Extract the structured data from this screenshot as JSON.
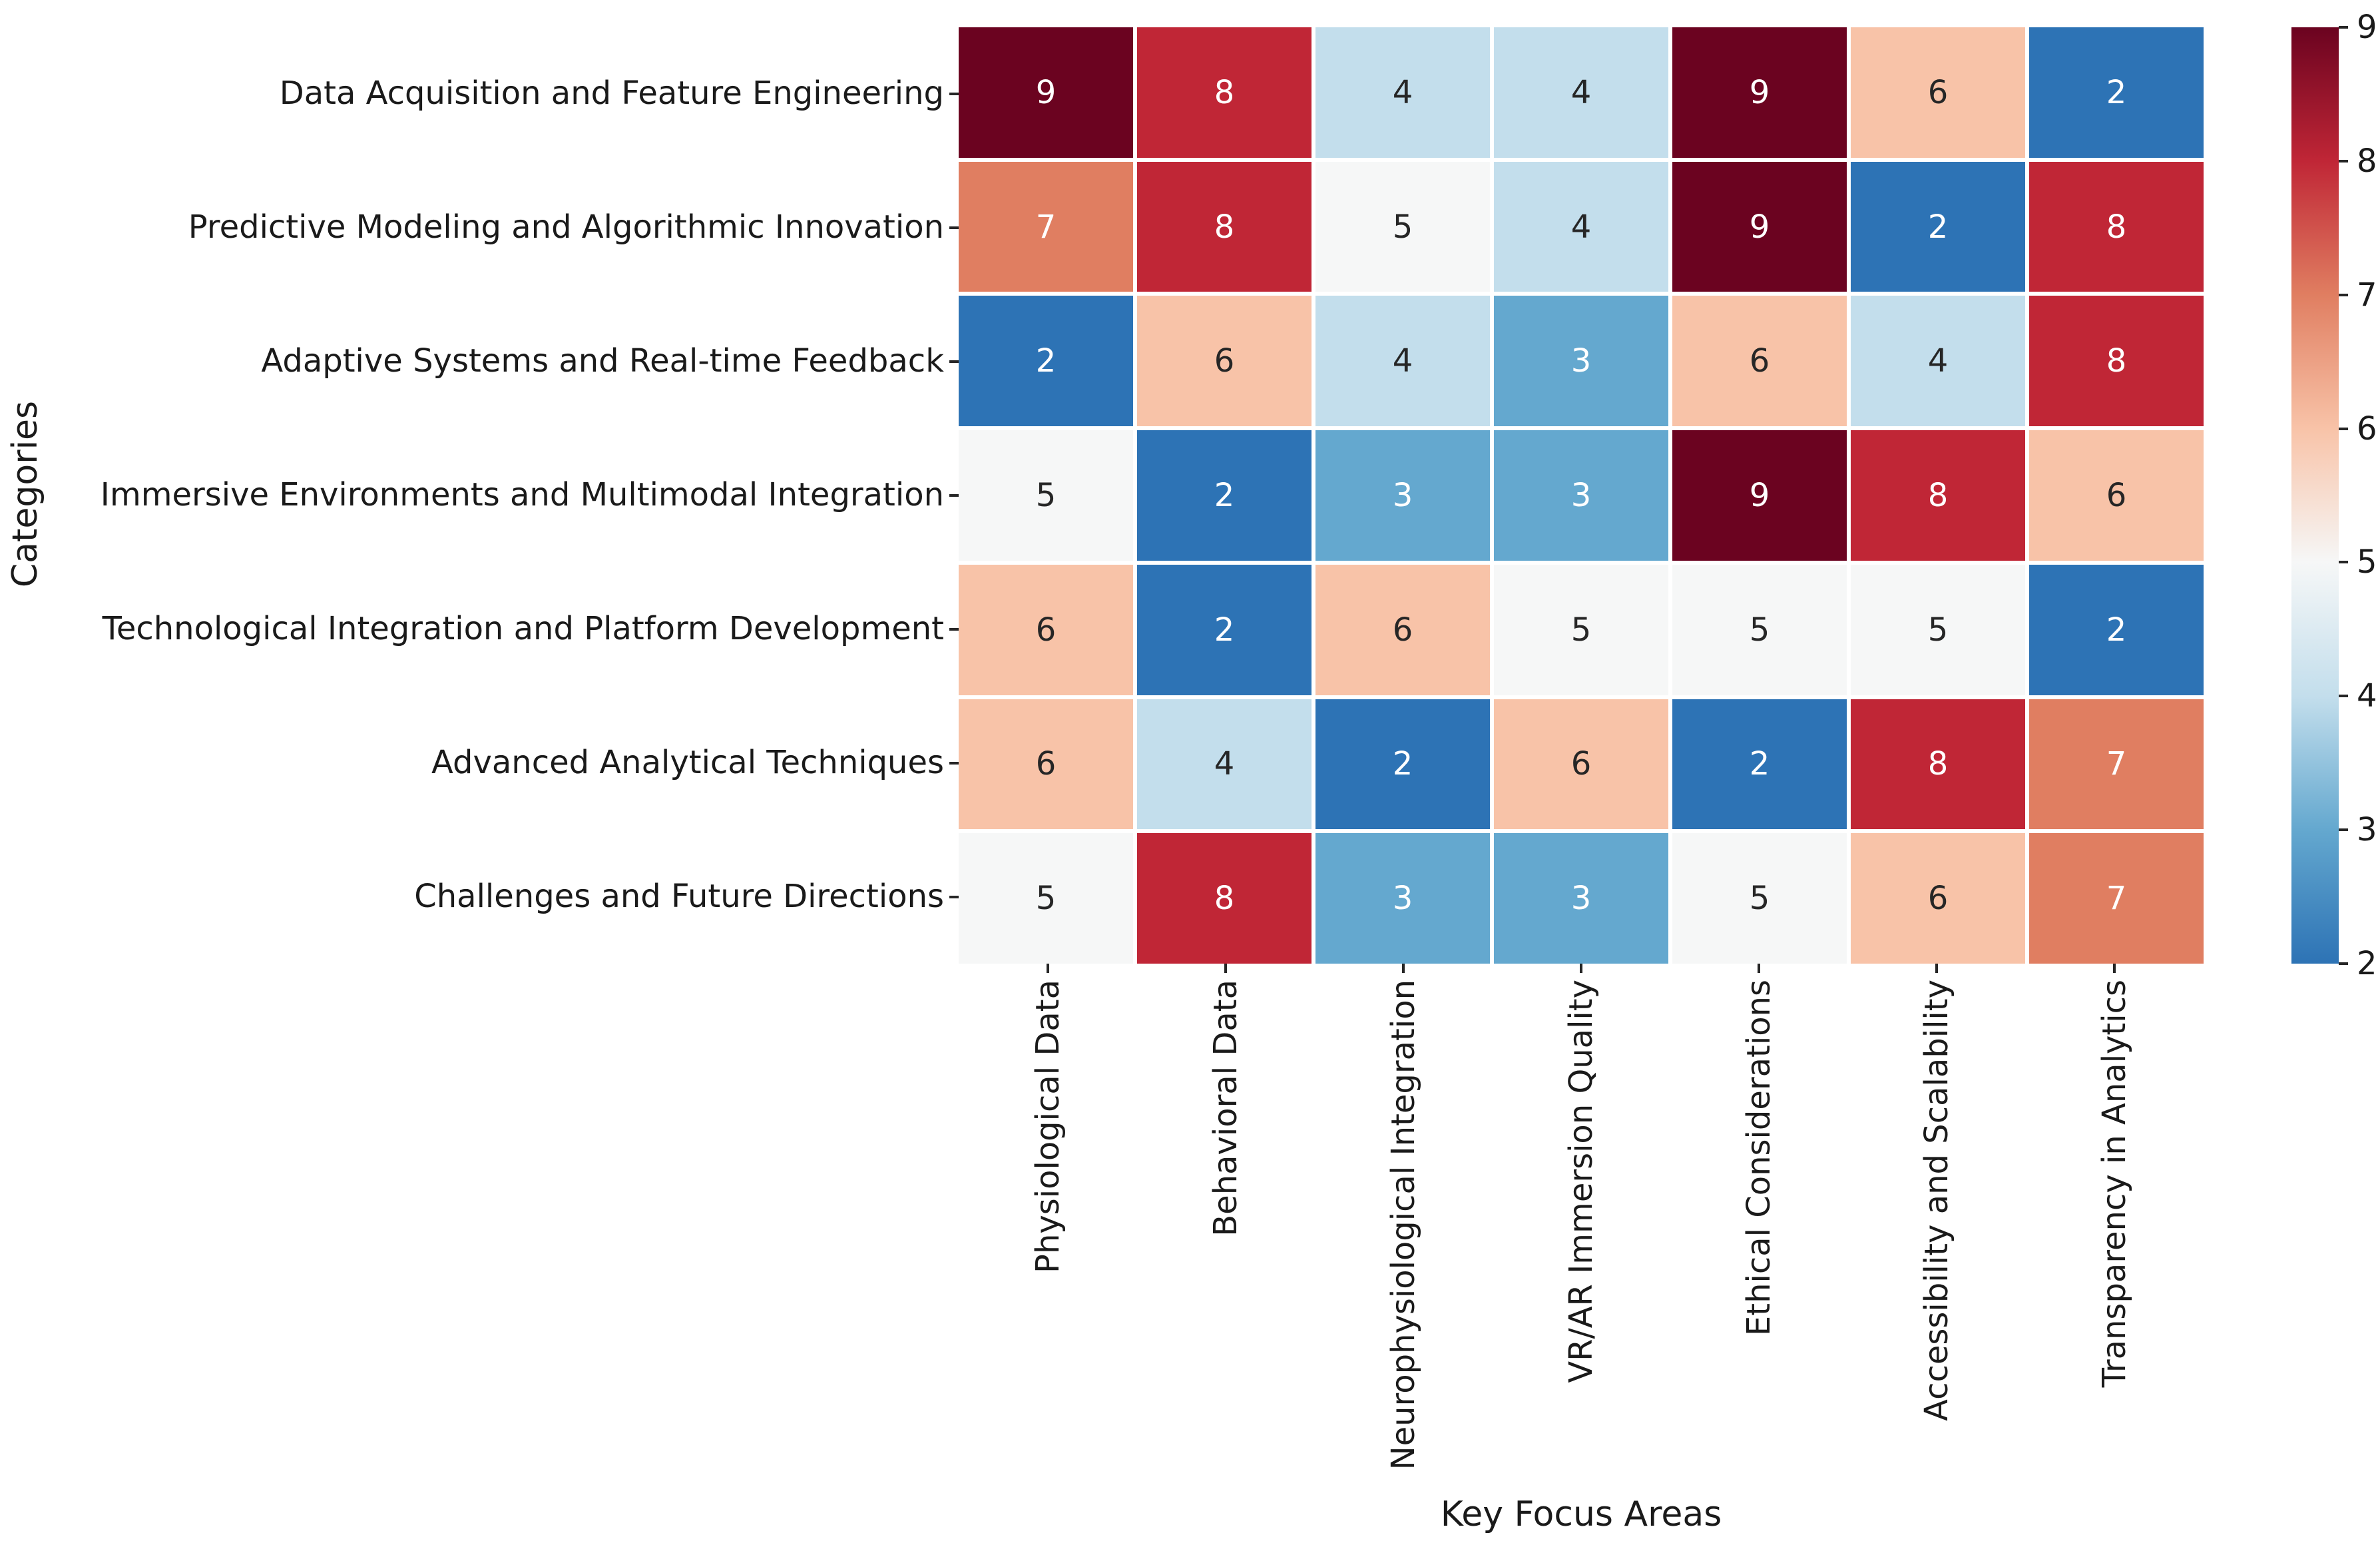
{
  "chart_data": {
    "type": "heatmap",
    "title": "",
    "xlabel": "Key Focus Areas",
    "ylabel": "Categories",
    "x_categories": [
      "Physiological Data",
      "Behavioral Data",
      "Neurophysiological Integration",
      "VR/AR Immersion Quality",
      "Ethical Considerations",
      "Accessibility and Scalability",
      "Transparency in Analytics"
    ],
    "categories": [
      "Data Acquisition and Feature Engineering",
      "Predictive Modeling and Algorithmic Innovation",
      "Adaptive Systems and Real-time Feedback",
      "Immersive Environments and Multimodal Integration",
      "Technological Integration and Platform Development",
      "Advanced Analytical Techniques",
      "Challenges and Future Directions"
    ],
    "values": [
      [
        9,
        8,
        4,
        4,
        9,
        6,
        2
      ],
      [
        7,
        8,
        5,
        4,
        9,
        2,
        8
      ],
      [
        2,
        6,
        4,
        3,
        6,
        4,
        8
      ],
      [
        5,
        2,
        3,
        3,
        9,
        8,
        6
      ],
      [
        6,
        2,
        6,
        5,
        5,
        5,
        2
      ],
      [
        6,
        4,
        2,
        6,
        2,
        8,
        7
      ],
      [
        5,
        8,
        3,
        3,
        5,
        6,
        7
      ]
    ],
    "vmin": 2,
    "vmax": 9,
    "colorbar_ticks": [
      9,
      8,
      7,
      6,
      5,
      4,
      3,
      2
    ],
    "palette": {
      "2": "#2d73b5",
      "3": "#64a8cf",
      "4": "#c3deec",
      "5": "#f6f7f7",
      "6": "#f8c3a8",
      "7": "#e07e61",
      "8": "#c02636",
      "9": "#6b0320"
    },
    "dark_text_values": [
      4,
      5,
      6
    ],
    "annotation_text_dark": "#262626",
    "annotation_text_light": "#ffffff",
    "grid": false,
    "legend_position": "right-colorbar"
  }
}
